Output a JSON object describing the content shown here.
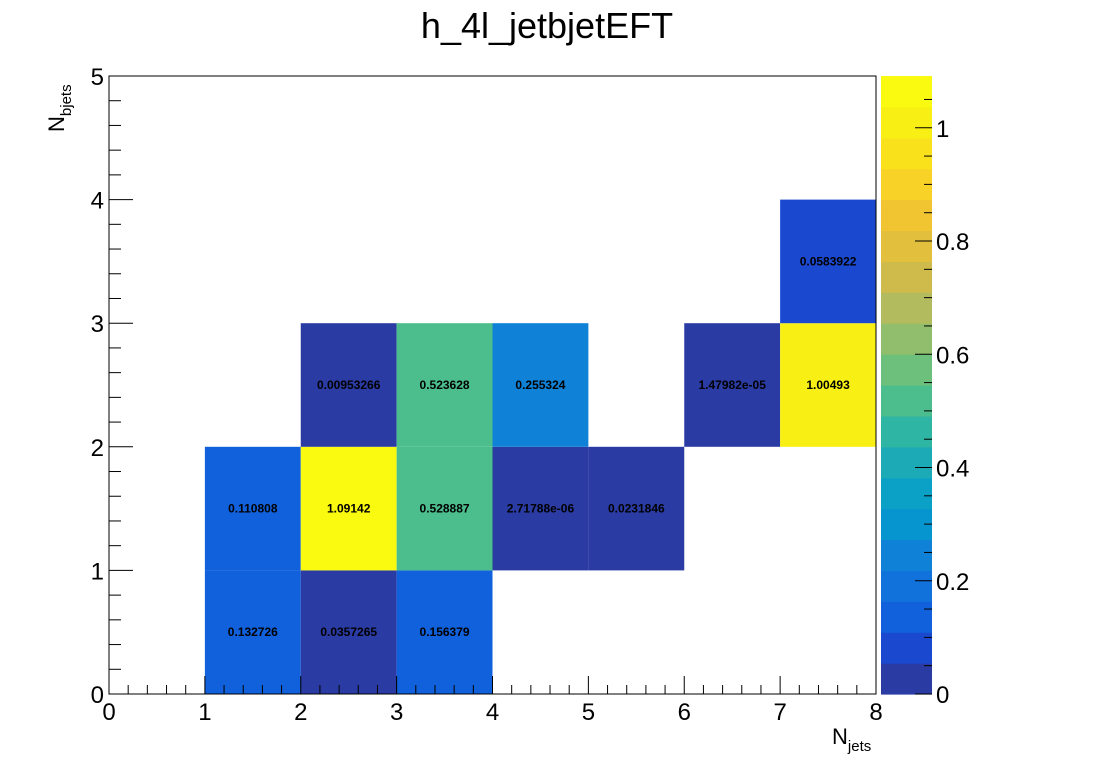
{
  "chart_data": {
    "type": "heatmap",
    "title": "h_4l_jetbjetEFT",
    "xlabel": {
      "main": "N",
      "sub": "jets"
    },
    "ylabel": {
      "main": "N",
      "sub": "bjets"
    },
    "xlim": [
      0,
      8
    ],
    "ylim": [
      0,
      5
    ],
    "x_ticks": [
      "0",
      "1",
      "2",
      "3",
      "4",
      "5",
      "6",
      "7",
      "8"
    ],
    "y_ticks": [
      "0",
      "1",
      "2",
      "3",
      "4",
      "5"
    ],
    "zlim": [
      0,
      1.09142
    ],
    "z_ticks": [
      "0",
      "0.2",
      "0.4",
      "0.6",
      "0.8",
      "1"
    ],
    "palette": [
      "#2a3ba3",
      "#1a49cf",
      "#1160dc",
      "#1272dc",
      "#0f82d8",
      "#0695cf",
      "#0ba1c6",
      "#1daab7",
      "#2fb5a3",
      "#4cbd8c",
      "#6dbf7c",
      "#91be6c",
      "#b2bc5e",
      "#cfba4c",
      "#e3bf3e",
      "#f1c432",
      "#f8d226",
      "#f9e21c",
      "#f8ef15",
      "#f9fa0f"
    ],
    "cells": [
      {
        "x": 1,
        "y": 0,
        "value": 0.132726,
        "label": "0.132726"
      },
      {
        "x": 2,
        "y": 0,
        "value": 0.0357265,
        "label": "0.0357265"
      },
      {
        "x": 3,
        "y": 0,
        "value": 0.156379,
        "label": "0.156379"
      },
      {
        "x": 1,
        "y": 1,
        "value": 0.110808,
        "label": "0.110808"
      },
      {
        "x": 2,
        "y": 1,
        "value": 1.09142,
        "label": "1.09142"
      },
      {
        "x": 3,
        "y": 1,
        "value": 0.528887,
        "label": "0.528887"
      },
      {
        "x": 4,
        "y": 1,
        "value": 2.71788e-06,
        "label": "2.71788e-06"
      },
      {
        "x": 5,
        "y": 1,
        "value": 0.0231846,
        "label": "0.0231846"
      },
      {
        "x": 2,
        "y": 2,
        "value": 0.00953266,
        "label": "0.00953266"
      },
      {
        "x": 3,
        "y": 2,
        "value": 0.523628,
        "label": "0.523628"
      },
      {
        "x": 4,
        "y": 2,
        "value": 0.255324,
        "label": "0.255324"
      },
      {
        "x": 6,
        "y": 2,
        "value": 1.47982e-05,
        "label": "1.47982e-05"
      },
      {
        "x": 7,
        "y": 2,
        "value": 1.00493,
        "label": "1.00493"
      },
      {
        "x": 7,
        "y": 3,
        "value": 0.0583922,
        "label": "0.0583922"
      }
    ]
  }
}
